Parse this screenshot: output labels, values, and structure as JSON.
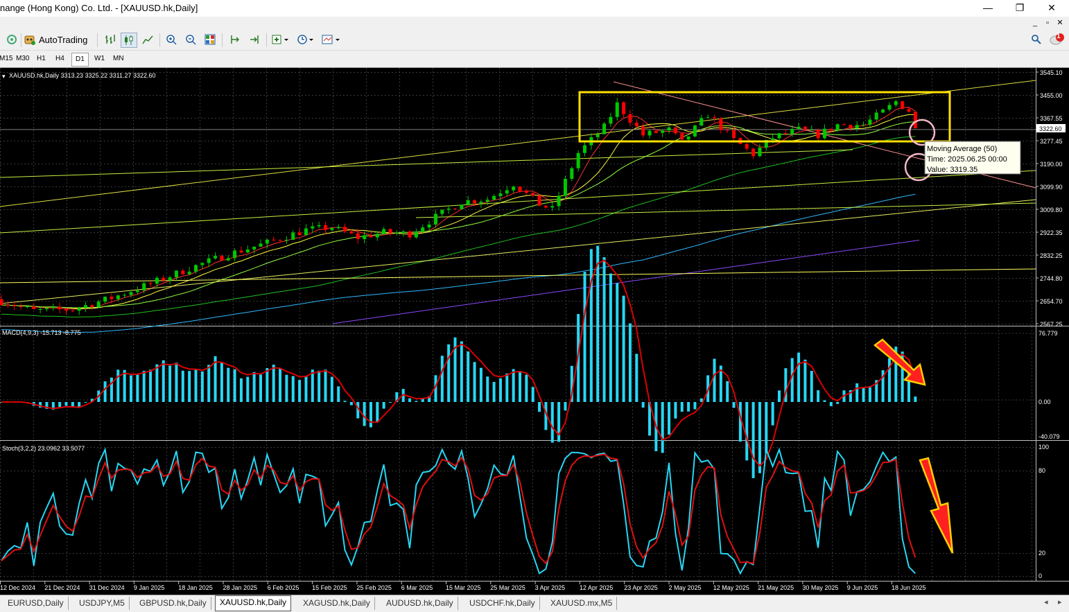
{
  "window": {
    "title": "nange (Hong Kong) Co. Ltd. - [XAUUSD.hk,Daily]",
    "minimize": "—",
    "maximize": "❐",
    "close": "✕"
  },
  "toolbar": {
    "autotrading_label": "AutoTrading",
    "notification_count": "1"
  },
  "timeframes": [
    "M15",
    "M30",
    "H1",
    "H4",
    "D1",
    "W1",
    "MN"
  ],
  "active_timeframe": "D1",
  "tabs": [
    "EURUSD,Daily",
    "USDJPY,M5",
    "GBPUSD.hk,Daily",
    "XAUUSD.hk,Daily",
    "XAGUSD.hk,Daily",
    "AUDUSD.hk,Daily",
    "USDCHF.hk,Daily",
    "XAUUSD.mx,M5"
  ],
  "active_tab": "XAUUSD.hk,Daily",
  "price_panel": {
    "header": "XAUUSD.hk,Daily  3313.23 3325.22 3311.27 3322.60",
    "current_price": "3322.60",
    "axis_labels": [
      "3545.10",
      "3455.00",
      "3367.55",
      "3277.45",
      "3190.00",
      "3099.90",
      "3009.80",
      "2922.35",
      "2832.25",
      "2744.80",
      "2654.70",
      "2567.25"
    ]
  },
  "tooltip": {
    "line1": "Moving Average (50)",
    "line2": "Time: 2025.06.25 00:00",
    "line3": "Value: 3319.35"
  },
  "macd_panel": {
    "header": "MACD(4,9,3) -15.713 -8.775",
    "axis_labels": [
      "76.779",
      "0.00",
      "-40.079"
    ]
  },
  "stoch_panel": {
    "header": "Stoch(3,2,2) 23.0962 33.5077",
    "axis_labels": [
      "100",
      "80",
      "20",
      "0"
    ]
  },
  "date_labels": [
    "12 Dec 2024",
    "21 Dec 2024",
    "31 Dec 2024",
    "9 Jan 2025",
    "18 Jan 2025",
    "28 Jan 2025",
    "6 Feb 2025",
    "15 Feb 2025",
    "25 Feb 2025",
    "6 Mar 2025",
    "15 Mar 2025",
    "25 Mar 2025",
    "3 Apr 2025",
    "12 Apr 2025",
    "23 Apr 2025",
    "2 May 2025",
    "12 May 2025",
    "21 May 2025",
    "30 May 2025",
    "9 Jun 2025",
    "18 Jun 2025"
  ],
  "colors": {
    "bull": "#00c800",
    "bear": "#ff0000",
    "macd_hist": "#27d7f5",
    "signal": "#dc0000",
    "highlight": "#ffe000",
    "annotation": "#f5b8c8"
  }
}
